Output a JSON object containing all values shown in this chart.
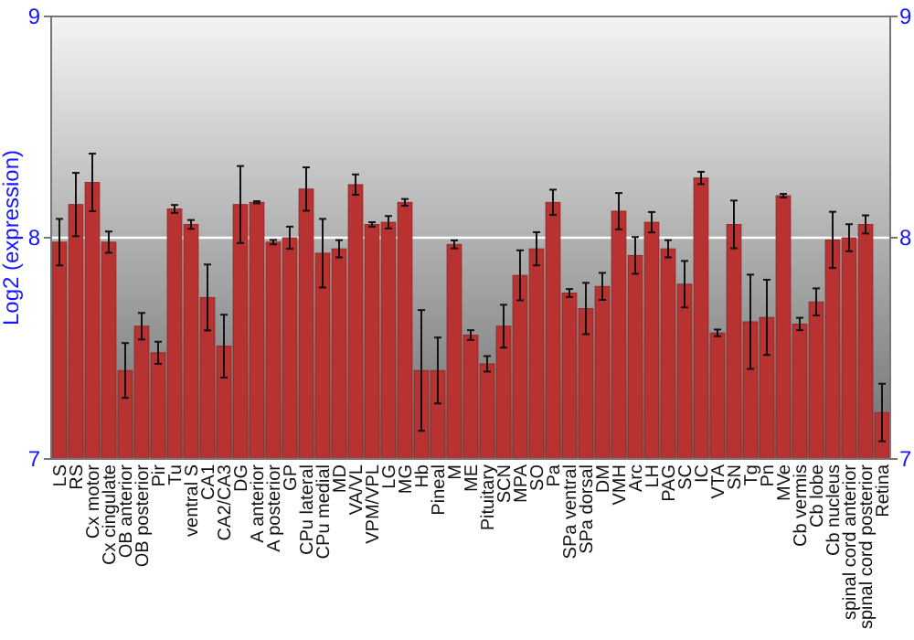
{
  "chart_data": {
    "type": "bar",
    "ylabel": "Log2 (expression)",
    "categories": [
      "LS",
      "RS",
      "Cx motor",
      "Cx cingulate",
      "OB anterior",
      "OB posterior",
      "Pir",
      "Tu",
      "ventral S",
      "CA1",
      "CA2/CA3",
      "DG",
      "A anterior",
      "A posterior",
      "GP",
      "CPu lateral",
      "CPu medial",
      "MD",
      "VA/VL",
      "VPM/VPL",
      "LG",
      "MG",
      "Hb",
      "Pineal",
      "M",
      "ME",
      "Pituitary",
      "SCN",
      "MPA",
      "SO",
      "Pa",
      "SPa ventral",
      "SPa dorsal",
      "DM",
      "VMH",
      "Arc",
      "LH",
      "PAG",
      "SC",
      "IC",
      "VTA",
      "SN",
      "Tg",
      "Pn",
      "MVe",
      "Cb vermis",
      "Cb lobe",
      "Cb nucleus",
      "spinal cord anterior",
      "spinal cord posterior",
      "Retina"
    ],
    "values": [
      7.98,
      8.15,
      8.25,
      7.98,
      7.4,
      7.6,
      7.48,
      8.13,
      8.06,
      7.73,
      7.51,
      8.15,
      8.16,
      7.98,
      8.0,
      8.22,
      7.93,
      7.95,
      8.24,
      8.06,
      8.07,
      8.16,
      7.4,
      7.4,
      7.97,
      7.56,
      7.43,
      7.6,
      7.83,
      7.95,
      8.16,
      7.75,
      7.68,
      7.78,
      8.12,
      7.92,
      8.07,
      7.95,
      7.79,
      8.27,
      7.57,
      8.06,
      7.62,
      7.64,
      8.19,
      7.61,
      7.71,
      7.99,
      8.0,
      8.06,
      7.21
    ],
    "errors": [
      0.105,
      0.143,
      0.13,
      0.048,
      0.124,
      0.06,
      0.05,
      0.018,
      0.02,
      0.149,
      0.142,
      0.174,
      0.005,
      0.01,
      0.05,
      0.098,
      0.155,
      0.039,
      0.046,
      0.01,
      0.028,
      0.015,
      0.273,
      0.149,
      0.018,
      0.022,
      0.035,
      0.097,
      0.113,
      0.075,
      0.057,
      0.018,
      0.116,
      0.061,
      0.082,
      0.083,
      0.046,
      0.039,
      0.105,
      0.028,
      0.015,
      0.108,
      0.213,
      0.17,
      0.008,
      0.028,
      0.061,
      0.127,
      0.061,
      0.041,
      0.13
    ],
    "color": "#b83232",
    "ylim": [
      7,
      9
    ],
    "yticks": [
      7,
      8,
      9
    ],
    "y2lim": [
      7,
      9
    ],
    "y2ticks": [
      7,
      8,
      9
    ],
    "grid": "y"
  }
}
